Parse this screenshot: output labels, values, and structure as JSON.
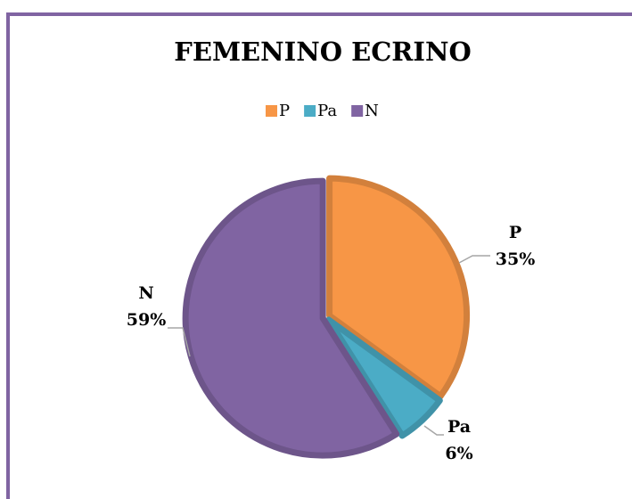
{
  "chart_data": {
    "type": "pie",
    "title": "FEMENINO ECRINO",
    "categories": [
      "P",
      "Pa",
      "N"
    ],
    "values": [
      35,
      6,
      59
    ],
    "value_labels": [
      "35%",
      "6%",
      "59%"
    ],
    "colors": [
      "#f79646",
      "#4bacc6",
      "#8064a2"
    ],
    "legend": "top"
  }
}
